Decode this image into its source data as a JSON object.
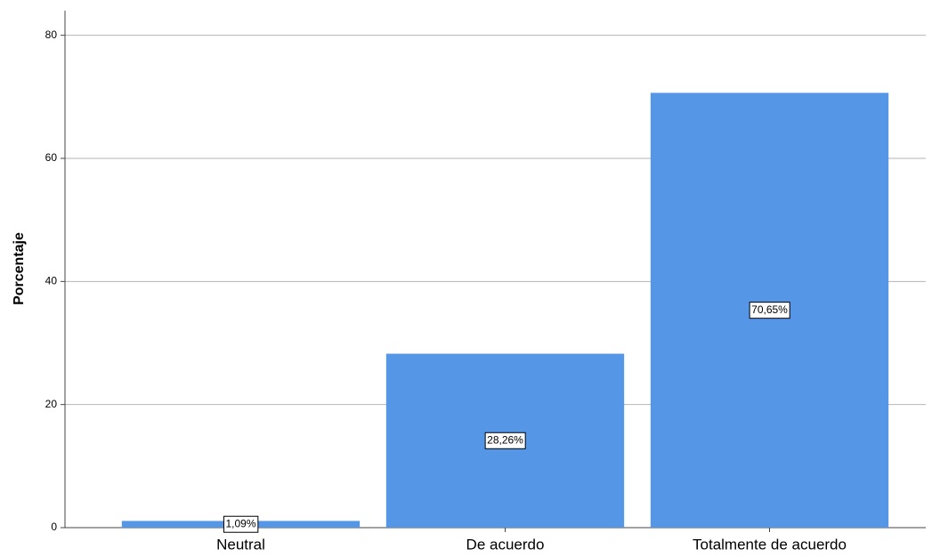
{
  "chart_data": {
    "type": "bar",
    "ylabel": "Porcentaje",
    "categories": [
      "Neutral",
      "De acuerdo",
      "Totalmente de acuerdo"
    ],
    "values": [
      1.09,
      28.26,
      70.65
    ],
    "value_labels": [
      "1,09%",
      "28,26%",
      "70,65%"
    ],
    "color": "#5596e6",
    "ylim": [
      0,
      84
    ],
    "yticks": [
      0,
      20,
      40,
      60,
      80
    ],
    "grid": true
  }
}
